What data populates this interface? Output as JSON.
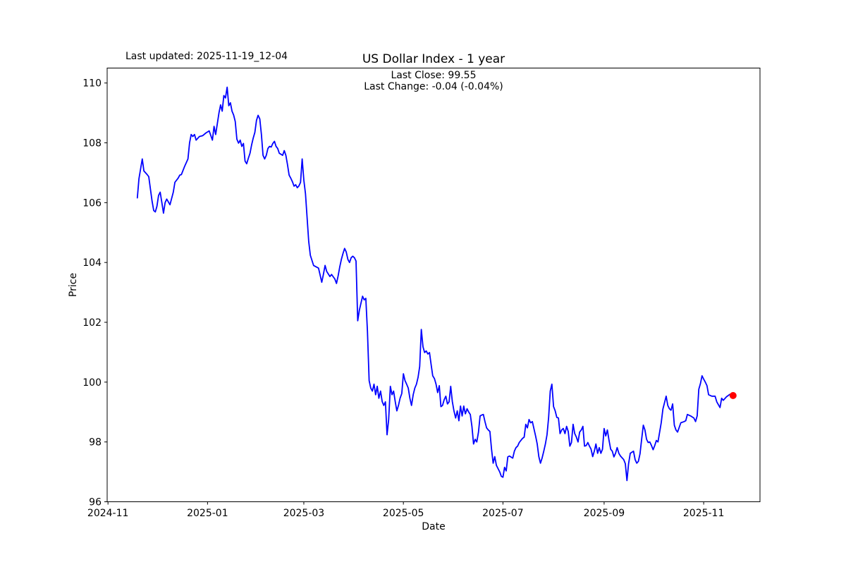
{
  "figure": {
    "last_updated": "Last updated: 2025-11-19_12-04",
    "title": "US Dollar Index - 1 year",
    "annotation": {
      "line1": "Last Close: 99.55",
      "line2": "Last Change: -0.04 (-0.04%)"
    },
    "background_color": "#ffffff",
    "frame_color": "#000000"
  },
  "chart_data": {
    "type": "line",
    "title": "US Dollar Index - 1 year",
    "xlabel": "Date",
    "ylabel": "Price",
    "legend": "none",
    "grid": false,
    "x_unit": "days since 2024-11-01",
    "xlim": [
      -0.5,
      399.5
    ],
    "ylim": [
      96.0,
      110.5
    ],
    "yticks": [
      96,
      98,
      100,
      102,
      104,
      106,
      108,
      110
    ],
    "xticks": [
      {
        "d": 0,
        "label": "2024-11"
      },
      {
        "d": 61,
        "label": "2025-01"
      },
      {
        "d": 120,
        "label": "2025-03"
      },
      {
        "d": 181,
        "label": "2025-05"
      },
      {
        "d": 242,
        "label": "2025-07"
      },
      {
        "d": 304,
        "label": "2025-09"
      },
      {
        "d": 365,
        "label": "2025-11"
      }
    ],
    "line_color": "#0000ff",
    "line_width": 1.8,
    "marker": {
      "d": 383,
      "value": 99.55,
      "color": "#ff0000",
      "radius": 5
    },
    "last_close": 99.55,
    "last_change": -0.04,
    "last_change_pct": "-0.04%",
    "series_name": "US Dollar Index",
    "points": [
      [
        18,
        106.16
      ],
      [
        19,
        106.8
      ],
      [
        21,
        107.46
      ],
      [
        22,
        107.06
      ],
      [
        24,
        106.94
      ],
      [
        25,
        106.87
      ],
      [
        27,
        106.05
      ],
      [
        28,
        105.74
      ],
      [
        29,
        105.69
      ],
      [
        30,
        105.88
      ],
      [
        31,
        106.24
      ],
      [
        32,
        106.35
      ],
      [
        33,
        106.0
      ],
      [
        34,
        105.65
      ],
      [
        35,
        106.0
      ],
      [
        36,
        106.12
      ],
      [
        38,
        105.93
      ],
      [
        40,
        106.35
      ],
      [
        41,
        106.68
      ],
      [
        43,
        106.82
      ],
      [
        44,
        106.92
      ],
      [
        45,
        106.94
      ],
      [
        47,
        107.22
      ],
      [
        49,
        107.46
      ],
      [
        50,
        108.0
      ],
      [
        51,
        108.28
      ],
      [
        52,
        108.21
      ],
      [
        53,
        108.28
      ],
      [
        54,
        108.09
      ],
      [
        56,
        108.21
      ],
      [
        58,
        108.24
      ],
      [
        60,
        108.33
      ],
      [
        62,
        108.4
      ],
      [
        64,
        108.09
      ],
      [
        65,
        108.55
      ],
      [
        66,
        108.28
      ],
      [
        68,
        109.0
      ],
      [
        69,
        109.27
      ],
      [
        70,
        109.06
      ],
      [
        71,
        109.58
      ],
      [
        72,
        109.5
      ],
      [
        73,
        109.86
      ],
      [
        74,
        109.24
      ],
      [
        75,
        109.34
      ],
      [
        76,
        109.06
      ],
      [
        77,
        108.93
      ],
      [
        78,
        108.71
      ],
      [
        79,
        108.12
      ],
      [
        80,
        107.99
      ],
      [
        81,
        108.09
      ],
      [
        82,
        107.88
      ],
      [
        83,
        107.98
      ],
      [
        84,
        107.39
      ],
      [
        85,
        107.3
      ],
      [
        86,
        107.48
      ],
      [
        87,
        107.65
      ],
      [
        88,
        107.93
      ],
      [
        89,
        108.16
      ],
      [
        90,
        108.35
      ],
      [
        91,
        108.75
      ],
      [
        92,
        108.92
      ],
      [
        93,
        108.8
      ],
      [
        94,
        108.28
      ],
      [
        95,
        107.58
      ],
      [
        96,
        107.46
      ],
      [
        97,
        107.58
      ],
      [
        98,
        107.81
      ],
      [
        99,
        107.88
      ],
      [
        100,
        107.86
      ],
      [
        101,
        107.98
      ],
      [
        102,
        108.05
      ],
      [
        103,
        107.88
      ],
      [
        104,
        107.81
      ],
      [
        105,
        107.65
      ],
      [
        106,
        107.62
      ],
      [
        107,
        107.58
      ],
      [
        108,
        107.74
      ],
      [
        109,
        107.58
      ],
      [
        110,
        107.27
      ],
      [
        111,
        106.92
      ],
      [
        112,
        106.82
      ],
      [
        113,
        106.7
      ],
      [
        114,
        106.55
      ],
      [
        115,
        106.6
      ],
      [
        116,
        106.5
      ],
      [
        117,
        106.56
      ],
      [
        118,
        106.68
      ],
      [
        119,
        107.46
      ],
      [
        120,
        106.75
      ],
      [
        121,
        106.3
      ],
      [
        123,
        104.7
      ],
      [
        124,
        104.24
      ],
      [
        126,
        103.9
      ],
      [
        129,
        103.81
      ],
      [
        131,
        103.34
      ],
      [
        132,
        103.6
      ],
      [
        133,
        103.9
      ],
      [
        134,
        103.7
      ],
      [
        136,
        103.53
      ],
      [
        137,
        103.6
      ],
      [
        139,
        103.45
      ],
      [
        140,
        103.3
      ],
      [
        141,
        103.55
      ],
      [
        142,
        103.85
      ],
      [
        143,
        104.1
      ],
      [
        144,
        104.3
      ],
      [
        145,
        104.47
      ],
      [
        146,
        104.35
      ],
      [
        147,
        104.1
      ],
      [
        148,
        104.0
      ],
      [
        149,
        104.16
      ],
      [
        150,
        104.21
      ],
      [
        151,
        104.16
      ],
      [
        152,
        104.05
      ],
      [
        153,
        102.05
      ],
      [
        154,
        102.4
      ],
      [
        155,
        102.64
      ],
      [
        156,
        102.87
      ],
      [
        157,
        102.75
      ],
      [
        158,
        102.8
      ],
      [
        159,
        101.7
      ],
      [
        160,
        100.05
      ],
      [
        161,
        99.8
      ],
      [
        162,
        99.7
      ],
      [
        163,
        99.93
      ],
      [
        164,
        99.58
      ],
      [
        165,
        99.86
      ],
      [
        166,
        99.46
      ],
      [
        167,
        99.7
      ],
      [
        168,
        99.35
      ],
      [
        169,
        99.22
      ],
      [
        170,
        99.34
      ],
      [
        171,
        98.24
      ],
      [
        172,
        98.75
      ],
      [
        173,
        99.86
      ],
      [
        174,
        99.58
      ],
      [
        175,
        99.7
      ],
      [
        176,
        99.35
      ],
      [
        177,
        99.04
      ],
      [
        178,
        99.22
      ],
      [
        179,
        99.46
      ],
      [
        180,
        99.62
      ],
      [
        181,
        100.28
      ],
      [
        182,
        100.05
      ],
      [
        183,
        99.93
      ],
      [
        184,
        99.8
      ],
      [
        185,
        99.46
      ],
      [
        186,
        99.22
      ],
      [
        187,
        99.58
      ],
      [
        188,
        99.8
      ],
      [
        189,
        99.93
      ],
      [
        190,
        100.16
      ],
      [
        191,
        100.52
      ],
      [
        192,
        101.76
      ],
      [
        193,
        101.18
      ],
      [
        194,
        100.99
      ],
      [
        195,
        101.04
      ],
      [
        196,
        100.94
      ],
      [
        197,
        100.99
      ],
      [
        198,
        100.59
      ],
      [
        199,
        100.21
      ],
      [
        200,
        100.12
      ],
      [
        201,
        99.93
      ],
      [
        202,
        99.65
      ],
      [
        203,
        99.88
      ],
      [
        204,
        99.18
      ],
      [
        205,
        99.22
      ],
      [
        206,
        99.41
      ],
      [
        207,
        99.53
      ],
      [
        208,
        99.27
      ],
      [
        209,
        99.34
      ],
      [
        210,
        99.86
      ],
      [
        211,
        99.35
      ],
      [
        212,
        99.04
      ],
      [
        213,
        98.8
      ],
      [
        214,
        99.04
      ],
      [
        215,
        98.71
      ],
      [
        216,
        99.2
      ],
      [
        217,
        98.87
      ],
      [
        218,
        99.2
      ],
      [
        219,
        98.94
      ],
      [
        220,
        99.11
      ],
      [
        221,
        99.0
      ],
      [
        222,
        98.92
      ],
      [
        223,
        98.52
      ],
      [
        224,
        97.93
      ],
      [
        225,
        98.09
      ],
      [
        226,
        98.0
      ],
      [
        227,
        98.33
      ],
      [
        228,
        98.87
      ],
      [
        229,
        98.9
      ],
      [
        230,
        98.92
      ],
      [
        231,
        98.68
      ],
      [
        232,
        98.47
      ],
      [
        233,
        98.4
      ],
      [
        234,
        98.35
      ],
      [
        235,
        97.76
      ],
      [
        236,
        97.29
      ],
      [
        237,
        97.51
      ],
      [
        238,
        97.22
      ],
      [
        239,
        97.11
      ],
      [
        240,
        97.0
      ],
      [
        241,
        96.85
      ],
      [
        242,
        96.82
      ],
      [
        243,
        97.15
      ],
      [
        244,
        97.03
      ],
      [
        245,
        97.5
      ],
      [
        246,
        97.53
      ],
      [
        248,
        97.46
      ],
      [
        249,
        97.69
      ],
      [
        250,
        97.81
      ],
      [
        251,
        97.86
      ],
      [
        252,
        97.98
      ],
      [
        254,
        98.12
      ],
      [
        255,
        98.16
      ],
      [
        256,
        98.59
      ],
      [
        257,
        98.47
      ],
      [
        258,
        98.75
      ],
      [
        259,
        98.64
      ],
      [
        260,
        98.68
      ],
      [
        262,
        98.2
      ],
      [
        263,
        97.93
      ],
      [
        264,
        97.51
      ],
      [
        265,
        97.29
      ],
      [
        266,
        97.46
      ],
      [
        267,
        97.69
      ],
      [
        268,
        97.93
      ],
      [
        269,
        98.24
      ],
      [
        270,
        98.82
      ],
      [
        271,
        99.7
      ],
      [
        272,
        99.93
      ],
      [
        273,
        99.18
      ],
      [
        274,
        99.04
      ],
      [
        275,
        98.82
      ],
      [
        276,
        98.8
      ],
      [
        277,
        98.28
      ],
      [
        278,
        98.4
      ],
      [
        279,
        98.45
      ],
      [
        280,
        98.28
      ],
      [
        281,
        98.52
      ],
      [
        282,
        98.35
      ],
      [
        283,
        97.86
      ],
      [
        284,
        97.98
      ],
      [
        285,
        98.59
      ],
      [
        286,
        98.28
      ],
      [
        287,
        98.16
      ],
      [
        288,
        98.0
      ],
      [
        289,
        98.33
      ],
      [
        290,
        98.4
      ],
      [
        291,
        98.52
      ],
      [
        292,
        97.86
      ],
      [
        293,
        97.88
      ],
      [
        294,
        97.98
      ],
      [
        295,
        97.86
      ],
      [
        296,
        97.76
      ],
      [
        297,
        97.51
      ],
      [
        298,
        97.69
      ],
      [
        299,
        97.93
      ],
      [
        300,
        97.62
      ],
      [
        301,
        97.81
      ],
      [
        302,
        97.62
      ],
      [
        303,
        97.76
      ],
      [
        304,
        98.45
      ],
      [
        305,
        98.2
      ],
      [
        306,
        98.4
      ],
      [
        307,
        98.05
      ],
      [
        308,
        97.76
      ],
      [
        309,
        97.69
      ],
      [
        310,
        97.5
      ],
      [
        311,
        97.62
      ],
      [
        312,
        97.81
      ],
      [
        313,
        97.62
      ],
      [
        314,
        97.53
      ],
      [
        316,
        97.41
      ],
      [
        317,
        97.27
      ],
      [
        318,
        96.71
      ],
      [
        319,
        97.27
      ],
      [
        320,
        97.62
      ],
      [
        322,
        97.69
      ],
      [
        323,
        97.41
      ],
      [
        324,
        97.29
      ],
      [
        325,
        97.35
      ],
      [
        326,
        97.6
      ],
      [
        327,
        98.1
      ],
      [
        328,
        98.56
      ],
      [
        329,
        98.4
      ],
      [
        330,
        98.09
      ],
      [
        331,
        97.98
      ],
      [
        332,
        98.0
      ],
      [
        333,
        97.88
      ],
      [
        334,
        97.74
      ],
      [
        335,
        97.88
      ],
      [
        336,
        98.05
      ],
      [
        337,
        98.0
      ],
      [
        339,
        98.64
      ],
      [
        340,
        99.1
      ],
      [
        342,
        99.53
      ],
      [
        343,
        99.22
      ],
      [
        344,
        99.11
      ],
      [
        345,
        99.06
      ],
      [
        346,
        99.27
      ],
      [
        347,
        98.56
      ],
      [
        348,
        98.4
      ],
      [
        349,
        98.33
      ],
      [
        351,
        98.64
      ],
      [
        353,
        98.68
      ],
      [
        354,
        98.71
      ],
      [
        355,
        98.92
      ],
      [
        357,
        98.87
      ],
      [
        359,
        98.8
      ],
      [
        360,
        98.68
      ],
      [
        361,
        98.87
      ],
      [
        362,
        99.76
      ],
      [
        363,
        99.95
      ],
      [
        364,
        100.21
      ],
      [
        365,
        100.1
      ],
      [
        366,
        100.0
      ],
      [
        367,
        99.88
      ],
      [
        368,
        99.58
      ],
      [
        370,
        99.53
      ],
      [
        372,
        99.53
      ],
      [
        373,
        99.34
      ],
      [
        375,
        99.15
      ],
      [
        376,
        99.46
      ],
      [
        377,
        99.39
      ],
      [
        379,
        99.51
      ],
      [
        381,
        99.59
      ],
      [
        383,
        99.55
      ]
    ]
  }
}
